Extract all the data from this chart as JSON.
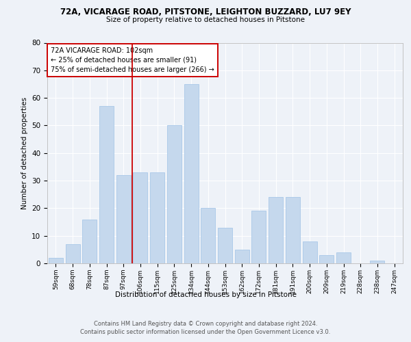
{
  "title1": "72A, VICARAGE ROAD, PITSTONE, LEIGHTON BUZZARD, LU7 9EY",
  "title2": "Size of property relative to detached houses in Pitstone",
  "xlabel": "Distribution of detached houses by size in Pitstone",
  "ylabel": "Number of detached properties",
  "bar_labels": [
    "59sqm",
    "68sqm",
    "78sqm",
    "87sqm",
    "97sqm",
    "106sqm",
    "115sqm",
    "125sqm",
    "134sqm",
    "144sqm",
    "153sqm",
    "162sqm",
    "172sqm",
    "181sqm",
    "191sqm",
    "200sqm",
    "209sqm",
    "219sqm",
    "228sqm",
    "238sqm",
    "247sqm"
  ],
  "bar_values": [
    2,
    7,
    16,
    57,
    32,
    33,
    33,
    50,
    65,
    20,
    13,
    5,
    19,
    24,
    24,
    8,
    3,
    4,
    0,
    1,
    0
  ],
  "bar_color": "#c5d8ed",
  "bar_edgecolor": "#a8c8e8",
  "vline_x": 4.5,
  "vline_color": "#cc0000",
  "annotation_text": "72A VICARAGE ROAD: 102sqm\n← 25% of detached houses are smaller (91)\n75% of semi-detached houses are larger (266) →",
  "annotation_box_edgecolor": "#cc0000",
  "ylim": [
    0,
    80
  ],
  "yticks": [
    0,
    10,
    20,
    30,
    40,
    50,
    60,
    70,
    80
  ],
  "footer1": "Contains HM Land Registry data © Crown copyright and database right 2024.",
  "footer2": "Contains public sector information licensed under the Open Government Licence v3.0.",
  "bg_color": "#eef2f8",
  "plot_bg_color": "#eef2f8"
}
